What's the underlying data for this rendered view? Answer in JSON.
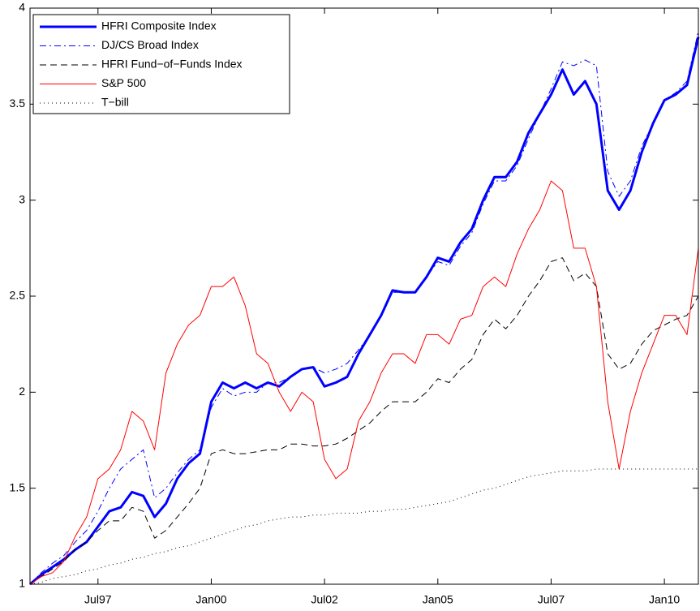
{
  "chart_data": {
    "type": "line",
    "x": [
      1996,
      1996.25,
      1996.5,
      1996.75,
      1997,
      1997.25,
      1997.5,
      1997.75,
      1998,
      1998.25,
      1998.5,
      1998.75,
      1999,
      1999.25,
      1999.5,
      1999.75,
      2000,
      2000.25,
      2000.5,
      2000.75,
      2001,
      2001.25,
      2001.5,
      2001.75,
      2002,
      2002.25,
      2002.5,
      2002.75,
      2003,
      2003.25,
      2003.5,
      2003.75,
      2004,
      2004.25,
      2004.5,
      2004.75,
      2005,
      2005.25,
      2005.5,
      2005.75,
      2006,
      2006.25,
      2006.5,
      2006.75,
      2007,
      2007.25,
      2007.5,
      2007.75,
      2008,
      2008.25,
      2008.5,
      2008.75,
      2009,
      2009.25,
      2009.5,
      2009.75,
      2010,
      2010.25,
      2010.5,
      2010.75
    ],
    "series": [
      {
        "name": "HFRI Composite Index",
        "color": "#0000ff",
        "line_width": 3,
        "line_style": "solid",
        "values": [
          1.0,
          1.05,
          1.09,
          1.13,
          1.18,
          1.22,
          1.3,
          1.38,
          1.4,
          1.48,
          1.46,
          1.35,
          1.42,
          1.55,
          1.63,
          1.68,
          1.95,
          2.05,
          2.02,
          2.05,
          2.02,
          2.05,
          2.03,
          2.08,
          2.12,
          2.13,
          2.03,
          2.05,
          2.08,
          2.2,
          2.3,
          2.4,
          2.53,
          2.52,
          2.52,
          2.6,
          2.7,
          2.68,
          2.78,
          2.85,
          3.0,
          3.12,
          3.12,
          3.2,
          3.35,
          3.45,
          3.55,
          3.68,
          3.55,
          3.62,
          3.5,
          3.05,
          2.95,
          3.05,
          3.25,
          3.4,
          3.52,
          3.55,
          3.6,
          3.85
        ]
      },
      {
        "name": "DJ/CS Broad Index",
        "color": "#0000ff",
        "line_width": 1,
        "line_style": "dashdot",
        "values": [
          1.0,
          1.06,
          1.11,
          1.15,
          1.22,
          1.28,
          1.38,
          1.5,
          1.6,
          1.65,
          1.7,
          1.45,
          1.5,
          1.58,
          1.65,
          1.7,
          1.92,
          2.02,
          1.98,
          2.0,
          2.0,
          2.05,
          2.05,
          2.08,
          2.12,
          2.13,
          2.1,
          2.12,
          2.15,
          2.22,
          2.3,
          2.4,
          2.52,
          2.52,
          2.52,
          2.6,
          2.68,
          2.66,
          2.76,
          2.83,
          2.98,
          3.1,
          3.1,
          3.18,
          3.32,
          3.45,
          3.58,
          3.72,
          3.7,
          3.73,
          3.7,
          3.15,
          3.02,
          3.1,
          3.28,
          3.4,
          3.52,
          3.56,
          3.62,
          3.88
        ]
      },
      {
        "name": "HFRI Fund−of−Funds Index",
        "color": "#000000",
        "line_width": 1,
        "line_style": "dashed",
        "values": [
          1.0,
          1.04,
          1.08,
          1.12,
          1.18,
          1.22,
          1.28,
          1.33,
          1.33,
          1.4,
          1.38,
          1.24,
          1.28,
          1.35,
          1.42,
          1.5,
          1.68,
          1.7,
          1.68,
          1.68,
          1.69,
          1.7,
          1.7,
          1.73,
          1.73,
          1.72,
          1.72,
          1.73,
          1.76,
          1.8,
          1.84,
          1.9,
          1.95,
          1.95,
          1.95,
          2.0,
          2.07,
          2.05,
          2.12,
          2.17,
          2.3,
          2.38,
          2.33,
          2.4,
          2.5,
          2.58,
          2.68,
          2.7,
          2.58,
          2.62,
          2.55,
          2.2,
          2.12,
          2.15,
          2.25,
          2.32,
          2.35,
          2.38,
          2.4,
          2.5
        ]
      },
      {
        "name": "S&P 500",
        "color": "#ff0000",
        "line_width": 1,
        "line_style": "solid",
        "values": [
          1.0,
          1.04,
          1.06,
          1.12,
          1.25,
          1.35,
          1.55,
          1.6,
          1.7,
          1.9,
          1.85,
          1.7,
          2.1,
          2.25,
          2.35,
          2.4,
          2.55,
          2.55,
          2.6,
          2.45,
          2.2,
          2.15,
          2.0,
          1.9,
          2.0,
          1.95,
          1.65,
          1.55,
          1.6,
          1.85,
          1.95,
          2.1,
          2.2,
          2.2,
          2.15,
          2.3,
          2.3,
          2.25,
          2.38,
          2.4,
          2.55,
          2.6,
          2.55,
          2.72,
          2.85,
          2.95,
          3.1,
          3.05,
          2.75,
          2.75,
          2.55,
          1.95,
          1.6,
          1.9,
          2.1,
          2.25,
          2.4,
          2.4,
          2.3,
          2.75
        ]
      },
      {
        "name": "T−bill",
        "color": "#000000",
        "line_width": 1,
        "line_style": "dotted",
        "values": [
          1.0,
          1.01,
          1.03,
          1.04,
          1.05,
          1.07,
          1.08,
          1.1,
          1.11,
          1.13,
          1.14,
          1.16,
          1.17,
          1.19,
          1.2,
          1.22,
          1.24,
          1.26,
          1.28,
          1.3,
          1.31,
          1.33,
          1.34,
          1.35,
          1.35,
          1.36,
          1.36,
          1.37,
          1.37,
          1.37,
          1.38,
          1.38,
          1.39,
          1.39,
          1.4,
          1.41,
          1.42,
          1.43,
          1.45,
          1.47,
          1.49,
          1.5,
          1.52,
          1.54,
          1.56,
          1.57,
          1.58,
          1.59,
          1.59,
          1.59,
          1.6,
          1.6,
          1.6,
          1.6,
          1.6,
          1.6,
          1.6,
          1.6,
          1.6,
          1.6
        ]
      }
    ],
    "xlim": [
      1996,
      2010.75
    ],
    "xticks": [
      {
        "value": 1997.5,
        "label": "Jul97"
      },
      {
        "value": 2000,
        "label": "Jan00"
      },
      {
        "value": 2002.5,
        "label": "Jul02"
      },
      {
        "value": 2005,
        "label": "Jan05"
      },
      {
        "value": 2007.5,
        "label": "Jul07"
      },
      {
        "value": 2010,
        "label": "Jan10"
      }
    ],
    "ylim": [
      1,
      4
    ],
    "yticks": [
      1,
      1.5,
      2,
      2.5,
      3,
      3.5,
      4
    ],
    "grid": false,
    "legend": "top-left"
  }
}
